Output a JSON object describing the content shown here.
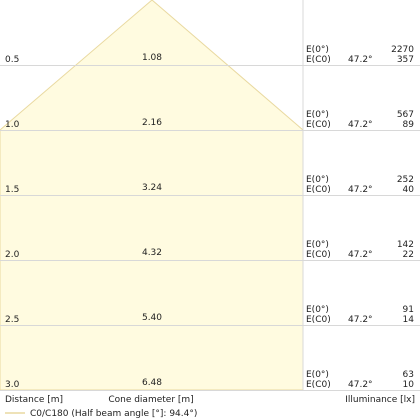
{
  "chart_data": {
    "type": "cone-diagram",
    "beam": {
      "name": "C0/C180 (Half beam angle [°]: 94.4°)",
      "color": "#fffbe0",
      "stroke": "#e9d9a0"
    },
    "rows": [
      {
        "distance": "0.5",
        "diameter": "1.08",
        "e0_label": "E(0°)",
        "ec0_label": "E(C0)",
        "angle": "47.2°",
        "e0": "2270",
        "ec0": "357"
      },
      {
        "distance": "1.0",
        "diameter": "2.16",
        "e0_label": "E(0°)",
        "ec0_label": "E(C0)",
        "angle": "47.2°",
        "e0": "567",
        "ec0": "89"
      },
      {
        "distance": "1.5",
        "diameter": "3.24",
        "e0_label": "E(0°)",
        "ec0_label": "E(C0)",
        "angle": "47.2°",
        "e0": "252",
        "ec0": "40"
      },
      {
        "distance": "2.0",
        "diameter": "4.32",
        "e0_label": "E(0°)",
        "ec0_label": "E(C0)",
        "angle": "47.2°",
        "e0": "142",
        "ec0": "22"
      },
      {
        "distance": "2.5",
        "diameter": "5.40",
        "e0_label": "E(0°)",
        "ec0_label": "E(C0)",
        "angle": "47.2°",
        "e0": "91",
        "ec0": "14"
      },
      {
        "distance": "3.0",
        "diameter": "6.48",
        "e0_label": "E(0°)",
        "ec0_label": "E(C0)",
        "angle": "47.2°",
        "e0": "63",
        "ec0": "10"
      }
    ],
    "xlabel_left": "Distance [m]",
    "xlabel_center": "Cone diameter [m]",
    "xlabel_right": "Illuminance [lx]",
    "legend_position": "bottom-left"
  }
}
